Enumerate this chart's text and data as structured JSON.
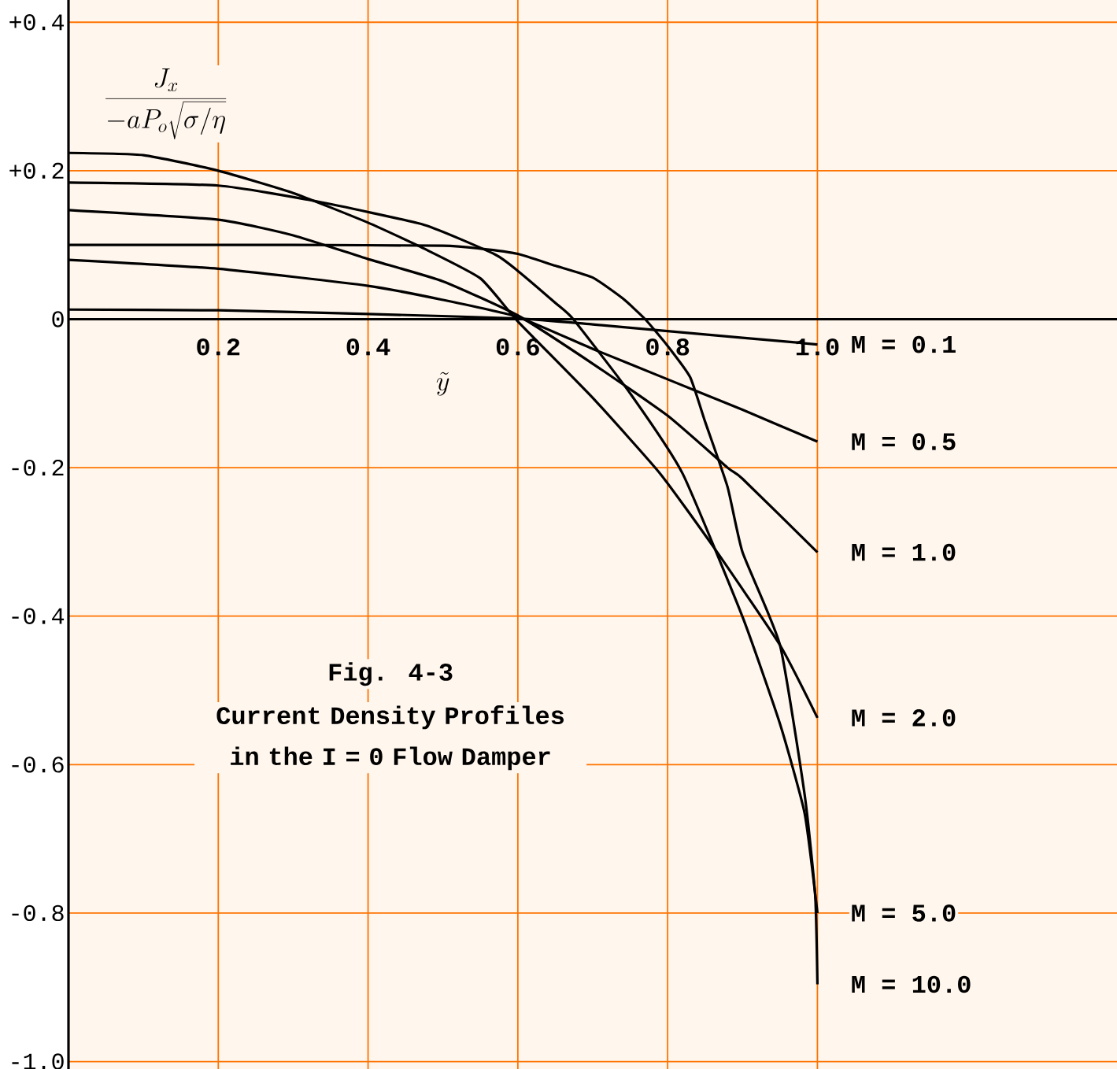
{
  "chart_data": {
    "type": "line",
    "title": "Fig. 4-3",
    "subtitle": "Current Density Profiles in the I = 0 Flow Damper",
    "xlabel": "\\tilde{y}",
    "ylabel": "\\frac{J_x}{-aP_o\\sqrt{\\sigma/\\eta}}",
    "xlim": [
      0,
      1.4
    ],
    "ylim": [
      -1.01,
      0.43
    ],
    "xticks": [
      0.2,
      0.4,
      0.6,
      0.8,
      {
        "value": 1.0,
        "label": "1.0"
      }
    ],
    "yticks": [
      {
        "value": 0.4,
        "label": "+0.4"
      },
      {
        "value": 0.2,
        "label": "+0.2"
      },
      0,
      -0.2,
      -0.4,
      -0.6,
      -0.8,
      {
        "value": -1.0,
        "label": "-1.0"
      }
    ],
    "grid": true,
    "marker": "none",
    "line_style": "solid",
    "series": [
      {
        "name": "M = 0.1",
        "color": "#000000",
        "x": [
          0,
          0.2,
          0.4,
          0.6,
          0.7,
          0.8,
          0.9,
          1.0
        ],
        "values": [
          0.013,
          0.012,
          0.007,
          0.001,
          -0.007,
          -0.016,
          -0.025,
          -0.034
        ]
      },
      {
        "name": "M = 0.5",
        "color": "#000000",
        "x": [
          0,
          0.2,
          0.4,
          0.5,
          0.6,
          0.7,
          0.8,
          0.9,
          1.0
        ],
        "values": [
          0.08,
          0.068,
          0.045,
          0.026,
          0.003,
          -0.04,
          -0.081,
          -0.122,
          -0.165
        ]
      },
      {
        "name": "M = 1.0",
        "color": "#000000",
        "x": [
          0,
          0.2,
          0.3,
          0.4,
          0.5,
          0.6,
          0.7,
          0.8,
          0.88,
          0.9,
          1.0
        ],
        "values": [
          0.147,
          0.134,
          0.113,
          0.081,
          0.051,
          0.005,
          -0.06,
          -0.13,
          -0.2,
          -0.215,
          -0.314
        ]
      },
      {
        "name": "M = 2.0",
        "color": "#000000",
        "x": [
          0,
          0.1,
          0.2,
          0.3,
          0.4,
          0.475,
          0.55,
          0.6,
          0.7,
          0.79,
          0.86,
          0.95,
          1.0
        ],
        "values": [
          0.224,
          0.221,
          0.2,
          0.17,
          0.13,
          0.095,
          0.055,
          -0.003,
          -0.106,
          -0.208,
          -0.305,
          -0.439,
          -0.537
        ]
      },
      {
        "name": "M = 5.0",
        "color": "#000000",
        "x": [
          0,
          0.2,
          0.33,
          0.475,
          0.57,
          0.6,
          0.65,
          0.674,
          0.75,
          0.82,
          0.9,
          0.95,
          0.983,
          1.0
        ],
        "values": [
          0.184,
          0.18,
          0.159,
          0.127,
          0.087,
          0.065,
          0.022,
          0,
          -0.1,
          -0.208,
          -0.401,
          -0.545,
          -0.666,
          -0.8
        ]
      },
      {
        "name": "M = 10.0",
        "color": "#000000",
        "x": [
          0,
          0.3,
          0.5,
          0.55,
          0.6,
          0.65,
          0.7,
          0.74,
          0.77,
          0.8,
          0.83,
          0.85,
          0.88,
          0.9,
          0.95,
          0.983,
          0.997,
          1.0
        ],
        "values": [
          0.1,
          0.1,
          0.099,
          0.095,
          0.088,
          0.072,
          0.056,
          0.028,
          0,
          -0.036,
          -0.078,
          -0.138,
          -0.226,
          -0.314,
          -0.439,
          -0.641,
          -0.776,
          -0.896
        ]
      }
    ]
  }
}
